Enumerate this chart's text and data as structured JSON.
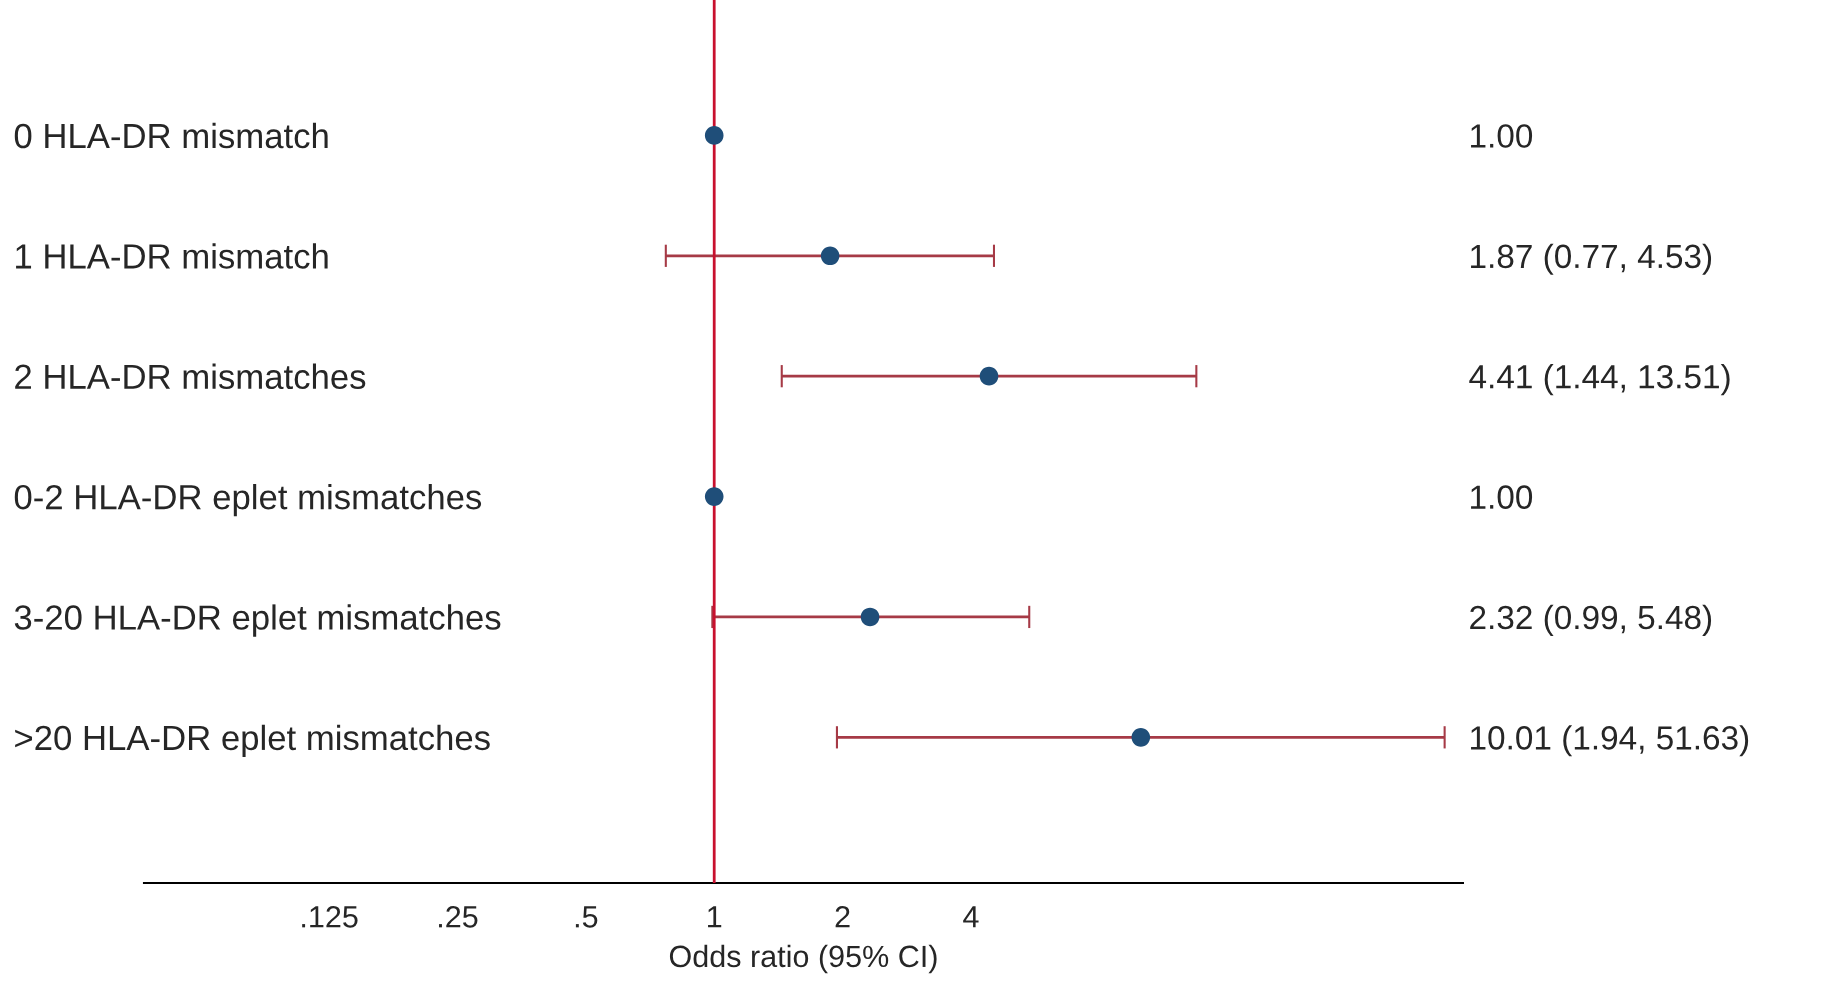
{
  "chart_data": {
    "type": "scatter",
    "orientation": "horizontal",
    "log": "x",
    "marker": "circle",
    "categories": [
      "0 HLA-DR mismatch",
      "1 HLA-DR mismatch",
      "2 HLA-DR mismatches",
      "0-2 HLA-DR eplet mismatches",
      "3-20 HLA-DR eplet mismatches",
      ">20 HLA-DR eplet mismatches"
    ],
    "color": "#1f4e79",
    "values": [
      1.0,
      1.87,
      4.41,
      1.0,
      2.32,
      10.01
    ],
    "errors": [
      null,
      [
        0.77,
        4.53
      ],
      [
        1.44,
        13.51
      ],
      null,
      [
        0.99,
        5.48
      ],
      [
        1.94,
        51.63
      ]
    ],
    "annotations": [
      "1.00",
      "1.87 (0.77, 4.53)",
      "4.41 (1.44, 13.51)",
      "1.00",
      "2.32 (0.99, 5.48)",
      "10.01 (1.94, 51.63)"
    ],
    "xlabel": "Odds ratio (95% CI)",
    "xlim": [
      0.046,
      57
    ],
    "xticks": [
      {
        "value": 0.125,
        "label": ".125"
      },
      {
        "value": 0.25,
        "label": ".25"
      },
      {
        "value": 0.5,
        "label": ".5"
      },
      1,
      2,
      4
    ],
    "ref_lines": [
      {
        "axis": "x",
        "value": 1,
        "color": "#c8102e"
      }
    ],
    "grid": false
  }
}
